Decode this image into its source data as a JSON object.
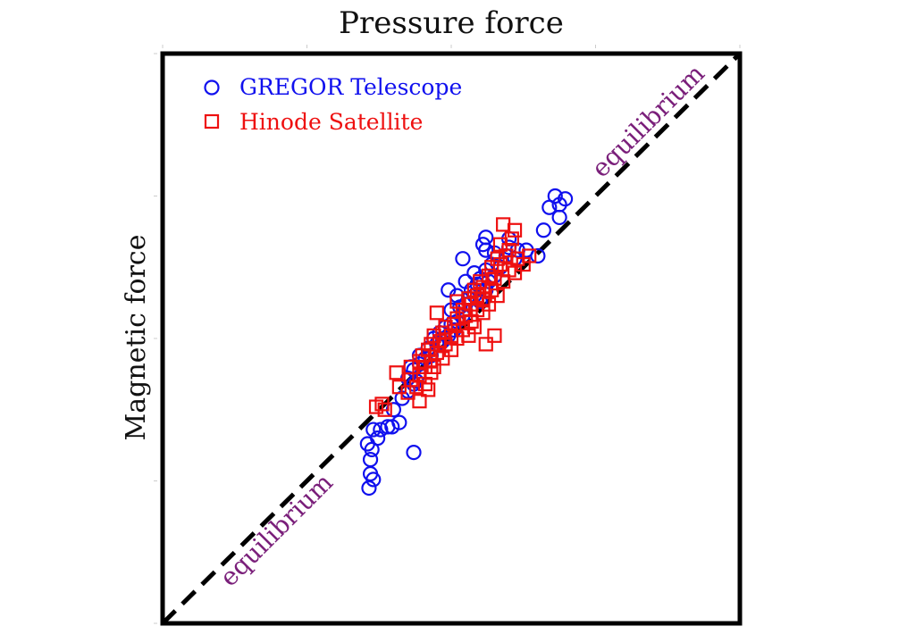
{
  "chart_data": {
    "type": "scatter",
    "title": "Pressure force",
    "xlabel": "Pressure force",
    "ylabel": "Magnetic force",
    "xlim": [
      0,
      4
    ],
    "ylim": [
      0,
      4
    ],
    "grid": false,
    "legend_position": "top-left",
    "reference_line": {
      "label": "equilibrium",
      "slope": 1,
      "intercept": 0,
      "style": "dashed",
      "color": "#000000"
    },
    "annotations": [
      {
        "text": "equilibrium",
        "color": "#7a1f7a"
      },
      {
        "text": "equilibrium",
        "color": "#7a1f7a"
      }
    ],
    "series": [
      {
        "name": "GREGOR Telescope",
        "marker": "circle",
        "color": "#1010ee",
        "points": [
          [
            1.43,
            0.95
          ],
          [
            1.44,
            1.05
          ],
          [
            1.46,
            1.01
          ],
          [
            1.44,
            1.15
          ],
          [
            1.45,
            1.22
          ],
          [
            1.42,
            1.26
          ],
          [
            1.49,
            1.3
          ],
          [
            1.46,
            1.36
          ],
          [
            1.51,
            1.36
          ],
          [
            1.56,
            1.38
          ],
          [
            1.59,
            1.38
          ],
          [
            1.64,
            1.41
          ],
          [
            1.74,
            1.2
          ],
          [
            1.6,
            1.5
          ],
          [
            1.66,
            1.58
          ],
          [
            1.7,
            1.63
          ],
          [
            1.74,
            1.68
          ],
          [
            1.76,
            1.7
          ],
          [
            1.7,
            1.72
          ],
          [
            1.74,
            1.78
          ],
          [
            1.72,
            1.8
          ],
          [
            1.78,
            1.82
          ],
          [
            1.82,
            1.86
          ],
          [
            1.78,
            1.88
          ],
          [
            1.86,
            1.88
          ],
          [
            1.84,
            1.93
          ],
          [
            1.9,
            1.96
          ],
          [
            1.94,
            1.98
          ],
          [
            1.88,
            2.0
          ],
          [
            1.92,
            2.04
          ],
          [
            1.98,
            2.02
          ],
          [
            2.02,
            2.06
          ],
          [
            1.96,
            2.08
          ],
          [
            2.0,
            2.1
          ],
          [
            2.04,
            2.12
          ],
          [
            2.08,
            2.16
          ],
          [
            2.0,
            2.2
          ],
          [
            2.06,
            2.22
          ],
          [
            2.1,
            2.24
          ],
          [
            2.12,
            2.28
          ],
          [
            2.04,
            2.3
          ],
          [
            2.16,
            2.3
          ],
          [
            2.2,
            2.26
          ],
          [
            2.14,
            2.34
          ],
          [
            2.18,
            2.38
          ],
          [
            2.24,
            2.34
          ],
          [
            2.1,
            2.4
          ],
          [
            2.2,
            2.42
          ],
          [
            2.26,
            2.4
          ],
          [
            2.3,
            2.44
          ],
          [
            2.16,
            2.46
          ],
          [
            2.24,
            2.48
          ],
          [
            2.28,
            2.52
          ],
          [
            2.34,
            2.5
          ],
          [
            1.98,
            2.34
          ],
          [
            2.08,
            2.56
          ],
          [
            2.24,
            2.62
          ],
          [
            2.3,
            2.6
          ],
          [
            2.38,
            2.58
          ],
          [
            2.44,
            2.56
          ],
          [
            2.46,
            2.62
          ],
          [
            2.52,
            2.62
          ],
          [
            2.6,
            2.58
          ],
          [
            2.4,
            2.64
          ],
          [
            2.22,
            2.66
          ],
          [
            2.24,
            2.71
          ],
          [
            2.4,
            2.7
          ],
          [
            2.64,
            2.76
          ],
          [
            2.75,
            2.85
          ],
          [
            2.68,
            2.92
          ],
          [
            2.72,
            3.0
          ],
          [
            2.79,
            2.98
          ],
          [
            2.75,
            2.94
          ]
        ]
      },
      {
        "name": "Hinode Satellite",
        "marker": "square",
        "color": "#ee1010",
        "points": [
          [
            1.48,
            1.52
          ],
          [
            1.52,
            1.54
          ],
          [
            1.54,
            1.5
          ],
          [
            1.62,
            1.76
          ],
          [
            1.64,
            1.66
          ],
          [
            1.7,
            1.62
          ],
          [
            1.72,
            1.71
          ],
          [
            1.76,
            1.66
          ],
          [
            1.78,
            1.74
          ],
          [
            1.82,
            1.68
          ],
          [
            1.86,
            1.76
          ],
          [
            1.72,
            1.8
          ],
          [
            1.78,
            1.84
          ],
          [
            1.82,
            1.8
          ],
          [
            1.86,
            1.84
          ],
          [
            1.88,
            1.8
          ],
          [
            1.8,
            1.88
          ],
          [
            1.84,
            1.92
          ],
          [
            1.9,
            1.9
          ],
          [
            1.94,
            1.86
          ],
          [
            1.86,
            1.96
          ],
          [
            1.92,
            1.98
          ],
          [
            1.96,
            1.96
          ],
          [
            2.0,
            1.92
          ],
          [
            1.88,
            2.02
          ],
          [
            1.94,
            2.04
          ],
          [
            2.0,
            2.02
          ],
          [
            2.04,
            2.0
          ],
          [
            1.96,
            2.08
          ],
          [
            2.02,
            2.1
          ],
          [
            2.08,
            2.06
          ],
          [
            2.12,
            2.02
          ],
          [
            2.04,
            2.14
          ],
          [
            2.1,
            2.16
          ],
          [
            2.14,
            2.12
          ],
          [
            2.16,
            2.08
          ],
          [
            2.08,
            2.2
          ],
          [
            2.14,
            2.24
          ],
          [
            2.18,
            2.2
          ],
          [
            2.22,
            2.18
          ],
          [
            2.12,
            2.28
          ],
          [
            2.18,
            2.3
          ],
          [
            2.22,
            2.28
          ],
          [
            2.26,
            2.24
          ],
          [
            2.16,
            2.34
          ],
          [
            2.22,
            2.36
          ],
          [
            2.28,
            2.34
          ],
          [
            2.32,
            2.3
          ],
          [
            2.2,
            2.4
          ],
          [
            2.26,
            2.44
          ],
          [
            2.3,
            2.42
          ],
          [
            2.36,
            2.4
          ],
          [
            2.28,
            2.5
          ],
          [
            2.34,
            2.52
          ],
          [
            2.4,
            2.48
          ],
          [
            2.44,
            2.46
          ],
          [
            2.32,
            2.56
          ],
          [
            2.38,
            2.58
          ],
          [
            2.46,
            2.56
          ],
          [
            2.5,
            2.52
          ],
          [
            2.4,
            2.62
          ],
          [
            2.54,
            2.58
          ],
          [
            2.34,
            2.66
          ],
          [
            2.42,
            2.7
          ],
          [
            2.44,
            2.76
          ],
          [
            2.36,
            2.8
          ],
          [
            2.04,
            2.26
          ],
          [
            1.9,
            2.18
          ],
          [
            2.24,
            1.96
          ],
          [
            2.3,
            2.02
          ],
          [
            1.78,
            1.56
          ],
          [
            1.84,
            1.64
          ]
        ]
      }
    ]
  }
}
